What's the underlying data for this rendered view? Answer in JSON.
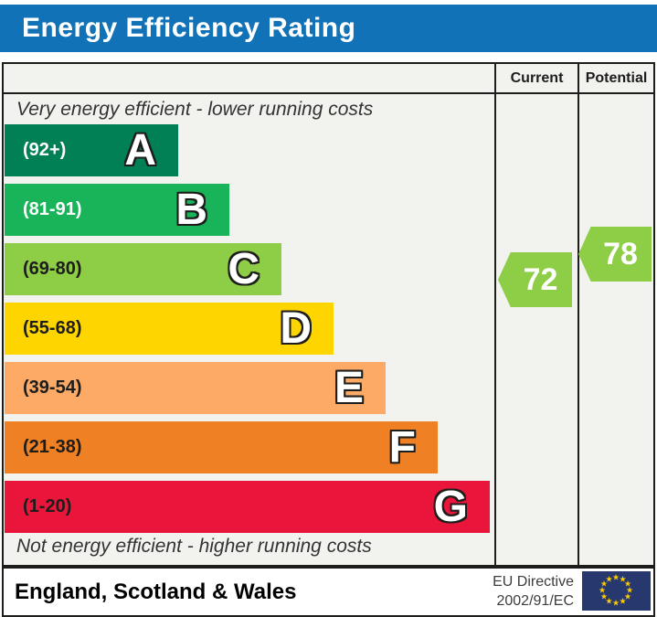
{
  "title": "Energy Efficiency Rating",
  "colors": {
    "header_blue": "#1272b8",
    "border": "#1d1d1b",
    "body_background": "#f2f2ef",
    "arrow_green": "#8dce46",
    "eu_flag_blue": "#27386e",
    "eu_star_yellow": "#ffcc00"
  },
  "columns": {
    "current": "Current",
    "potential": "Potential"
  },
  "captions": {
    "top": "Very energy efficient - lower running costs",
    "bottom": "Not energy efficient - higher running costs"
  },
  "chart_data": {
    "type": "bar",
    "title": "Energy Efficiency Rating",
    "bands": [
      {
        "letter": "A",
        "range_label": "(92+)",
        "color": "#008054",
        "label_color": "#ffffff"
      },
      {
        "letter": "B",
        "range_label": "(81-91)",
        "color": "#19b459",
        "label_color": "#ffffff"
      },
      {
        "letter": "C",
        "range_label": "(69-80)",
        "color": "#8dce46",
        "label_color": "#1d1d1b"
      },
      {
        "letter": "D",
        "range_label": "(55-68)",
        "color": "#ffd500",
        "label_color": "#1d1d1b"
      },
      {
        "letter": "E",
        "range_label": "(39-54)",
        "color": "#fcaa65",
        "label_color": "#1d1d1b"
      },
      {
        "letter": "F",
        "range_label": "(21-38)",
        "color": "#ef8023",
        "label_color": "#1d1d1b"
      },
      {
        "letter": "G",
        "range_label": "(1-20)",
        "color": "#e9153b",
        "label_color": "#1d1d1b"
      }
    ],
    "current": {
      "label": "Current",
      "value": 72,
      "color": "#8dce46"
    },
    "potential": {
      "label": "Potential",
      "value": 78,
      "color": "#8dce46"
    }
  },
  "footer": {
    "region": "England, Scotland & Wales",
    "directive_line1": "EU Directive",
    "directive_line2": "2002/91/EC",
    "eu_flag": {
      "icon": "eu-flag-icon",
      "stars": 12
    }
  }
}
